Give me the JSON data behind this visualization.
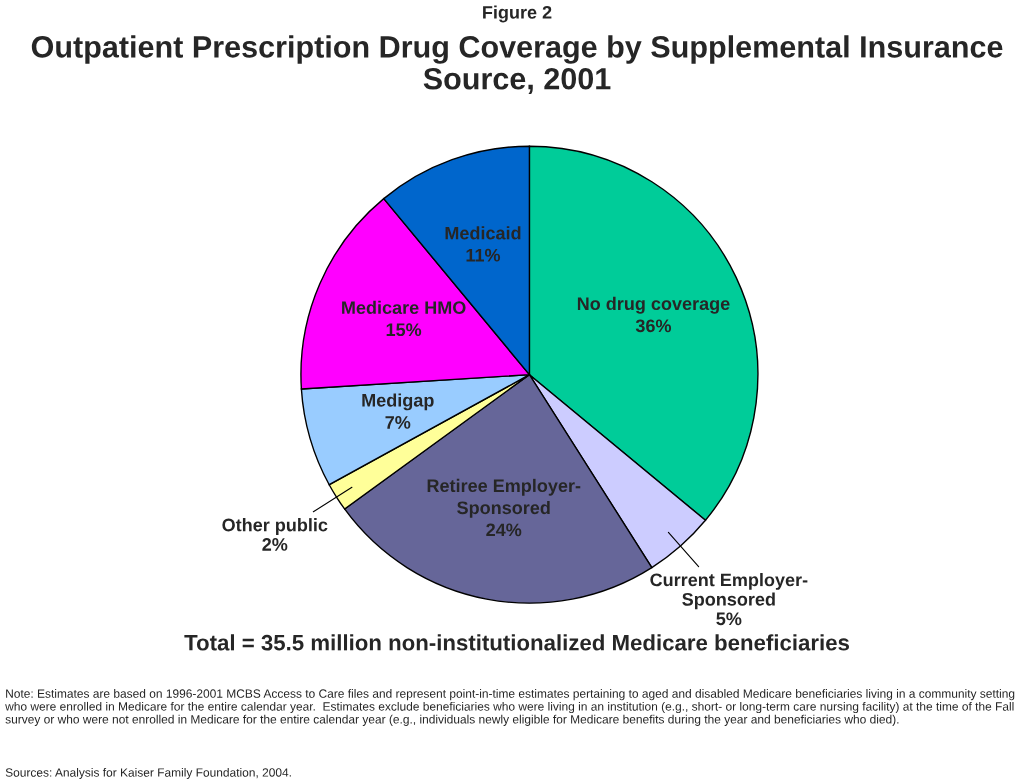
{
  "chart_data": {
    "type": "pie",
    "title": "Outpatient Prescription Drug Coverage by Supplemental Insurance Source, 2001",
    "categories": [
      "No drug coverage",
      "Current Employer-Sponsored",
      "Retiree Employer-Sponsored",
      "Other public",
      "Medigap",
      "Medicare HMO",
      "Medicaid"
    ],
    "values": [
      36,
      5,
      24,
      2,
      7,
      15,
      11
    ],
    "colors": [
      "#00cc99",
      "#ccccff",
      "#666699",
      "#ffff99",
      "#99ccff",
      "#ff00ff",
      "#0066cc"
    ],
    "value_labels": [
      "36%",
      "5%",
      "24%",
      "2%",
      "7%",
      "15%",
      "11%"
    ],
    "annotations": [
      "Figure 2",
      "Total = 35.5 million non-institutionalized Medicare beneficiaries",
      "Note: Estimates are based on 1996-2001 MCBS Access to Care files and represent point-in-time estimates pertaining to aged and disabled Medicare beneficiaries living in a community setting who were enrolled in Medicare for the entire calendar year.  Estimates exclude beneficiaries who were living in an institution (e.g., short- or long-term care nursing facility) at the time of the Fall survey or who were not enrolled in Medicare for the entire calendar year (e.g., individuals newly eligible for Medicare benefits during the year and beneficiaries who died).",
      "Sources: Analysis for Kaiser Family Foundation, 2004."
    ]
  }
}
